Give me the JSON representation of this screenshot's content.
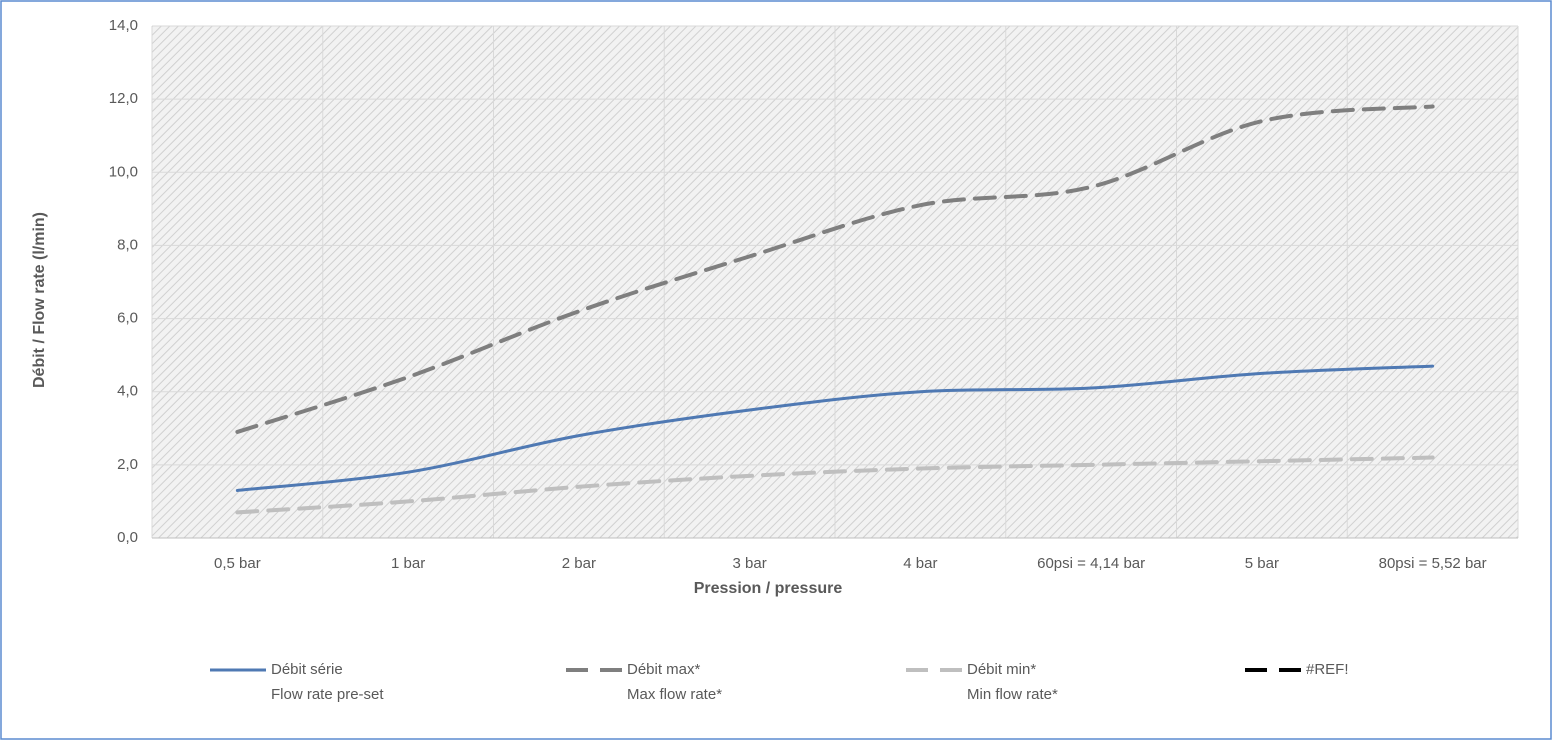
{
  "chart_data": {
    "type": "line",
    "categories": [
      "0,5 bar",
      "1 bar",
      "2 bar",
      "3 bar",
      "4 bar",
      "60psi = 4,14 bar",
      "5 bar",
      "80psi = 5,52 bar"
    ],
    "x_label": "Pression / pressure",
    "y_label": "Débit / Flow rate (l/min)",
    "ylim": [
      0,
      14
    ],
    "yticks": [
      {
        "value": 0,
        "label": "0,0"
      },
      {
        "value": 2,
        "label": "2,0"
      },
      {
        "value": 4,
        "label": "4,0"
      },
      {
        "value": 6,
        "label": "6,0"
      },
      {
        "value": 8,
        "label": "8,0"
      },
      {
        "value": 10,
        "label": "10,0"
      },
      {
        "value": 12,
        "label": "12,0"
      },
      {
        "value": 14,
        "label": "14,0"
      }
    ],
    "grid": true,
    "smooth": true,
    "legend": "bottom",
    "series": [
      {
        "name": "Débit série",
        "name2": "Flow rate pre-set",
        "color": "#4f79b3",
        "dash": "solid",
        "values": [
          1.3,
          1.8,
          2.8,
          3.5,
          4.0,
          4.1,
          4.5,
          4.7
        ]
      },
      {
        "name": "Débit max*",
        "name2": "Max flow rate*",
        "color": "#7f7f7f",
        "dash": "dashed",
        "values": [
          2.9,
          4.4,
          6.2,
          7.7,
          9.1,
          9.6,
          11.4,
          11.8
        ]
      },
      {
        "name": "Débit min*",
        "name2": "Min flow rate*",
        "color": "#bfbfbf",
        "dash": "dashed",
        "values": [
          0.7,
          1.0,
          1.4,
          1.7,
          1.9,
          2.0,
          2.1,
          2.2
        ]
      },
      {
        "name": "#REF!",
        "color": "#000000",
        "dash": "dashed",
        "values": [
          null,
          null,
          null,
          null,
          null,
          null,
          null,
          null
        ]
      }
    ]
  }
}
